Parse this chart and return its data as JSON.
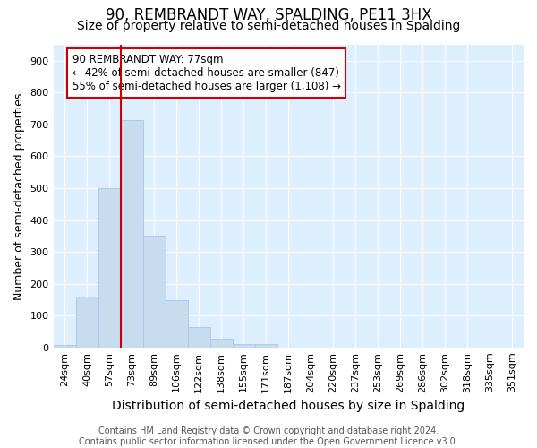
{
  "title": "90, REMBRANDT WAY, SPALDING, PE11 3HX",
  "subtitle": "Size of property relative to semi-detached houses in Spalding",
  "xlabel": "Distribution of semi-detached houses by size in Spalding",
  "ylabel": "Number of semi-detached properties",
  "categories": [
    "24sqm",
    "40sqm",
    "57sqm",
    "73sqm",
    "89sqm",
    "106sqm",
    "122sqm",
    "138sqm",
    "155sqm",
    "171sqm",
    "187sqm",
    "204sqm",
    "220sqm",
    "237sqm",
    "253sqm",
    "269sqm",
    "286sqm",
    "302sqm",
    "318sqm",
    "335sqm",
    "351sqm"
  ],
  "values": [
    8,
    160,
    500,
    715,
    350,
    148,
    65,
    28,
    12,
    10,
    0,
    0,
    0,
    0,
    0,
    0,
    0,
    0,
    0,
    0,
    0
  ],
  "bar_color": "#c8dcef",
  "bar_edgecolor": "#a8c8e8",
  "property_bar_index": 3,
  "redline_color": "#cc0000",
  "annotation_text": "90 REMBRANDT WAY: 77sqm\n← 42% of semi-detached houses are smaller (847)\n55% of semi-detached houses are larger (1,108) →",
  "annotation_box_facecolor": "#ffffff",
  "annotation_box_edgecolor": "#cc0000",
  "footer": "Contains HM Land Registry data © Crown copyright and database right 2024.\nContains public sector information licensed under the Open Government Licence v3.0.",
  "ylim": [
    0,
    950
  ],
  "yticks": [
    0,
    100,
    200,
    300,
    400,
    500,
    600,
    700,
    800,
    900
  ],
  "fig_bg_color": "#ffffff",
  "ax_bg_color": "#ddeeff",
  "grid_color": "#ffffff",
  "title_fontsize": 12,
  "subtitle_fontsize": 10,
  "xlabel_fontsize": 10,
  "ylabel_fontsize": 9,
  "annotation_fontsize": 8.5,
  "footer_fontsize": 7,
  "tick_fontsize": 8
}
